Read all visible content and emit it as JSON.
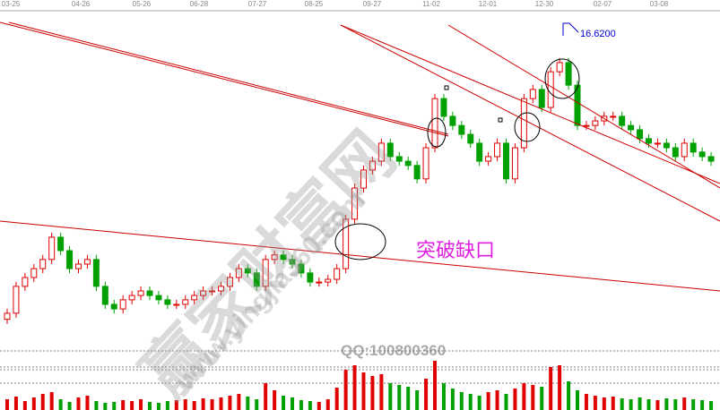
{
  "chart_data": {
    "type": "candlestick",
    "x_tick_labels": [
      "03-25",
      "04-26",
      "05-26",
      "06-28",
      "07-27",
      "08-25",
      "09-27",
      "11-02",
      "12-01",
      "12-30",
      "02-07",
      "03-08"
    ],
    "ylim": [
      7,
      17
    ],
    "close": [
      7.59,
      8.47,
      8.76,
      9.05,
      9.35,
      10.08,
      9.64,
      9.05,
      9.2,
      9.35,
      8.47,
      7.88,
      7.73,
      8.03,
      8.17,
      8.32,
      8.17,
      8.03,
      7.88,
      7.88,
      8.03,
      8.17,
      8.32,
      8.32,
      8.47,
      8.76,
      9.05,
      8.91,
      8.47,
      9.35,
      9.5,
      9.35,
      9.2,
      8.91,
      8.61,
      8.61,
      8.7,
      9.05,
      10.67,
      11.69,
      12.28,
      12.57,
      13.16,
      12.72,
      12.57,
      12.43,
      11.99,
      13.01,
      14.62,
      14.04,
      13.74,
      13.45,
      13.16,
      12.57,
      12.72,
      13.16,
      11.99,
      13.01,
      14.62,
      14.92,
      14.33,
      15.5,
      15.8,
      15.06,
      13.74,
      13.74,
      13.89,
      14.04,
      14.04,
      13.74,
      13.6,
      13.31,
      13.16,
      13.16,
      13.01,
      12.72,
      13.16,
      12.87,
      12.72,
      12.57
    ],
    "volume": [
      12,
      15,
      10,
      14,
      18,
      20,
      12,
      9,
      14,
      16,
      10,
      8,
      9,
      11,
      10,
      12,
      9,
      8,
      10,
      11,
      12,
      10,
      13,
      12,
      14,
      16,
      18,
      15,
      12,
      30,
      22,
      16,
      14,
      11,
      10,
      9,
      12,
      25,
      45,
      50,
      42,
      38,
      40,
      30,
      28,
      26,
      22,
      35,
      55,
      30,
      24,
      20,
      18,
      16,
      20,
      22,
      18,
      24,
      30,
      28,
      26,
      48,
      50,
      32,
      22,
      18,
      16,
      14,
      15,
      13,
      12,
      14,
      12,
      11,
      13,
      12,
      14,
      12,
      11,
      10
    ],
    "high_label": "16.6200",
    "annotations": {
      "gap": "突破缺口"
    },
    "up_color": "#e00000",
    "down_color": "#00a000"
  },
  "watermark": {
    "cn": "赢家财富网",
    "url": "www.yingjia360.com",
    "qq": "QQ:100800360"
  }
}
